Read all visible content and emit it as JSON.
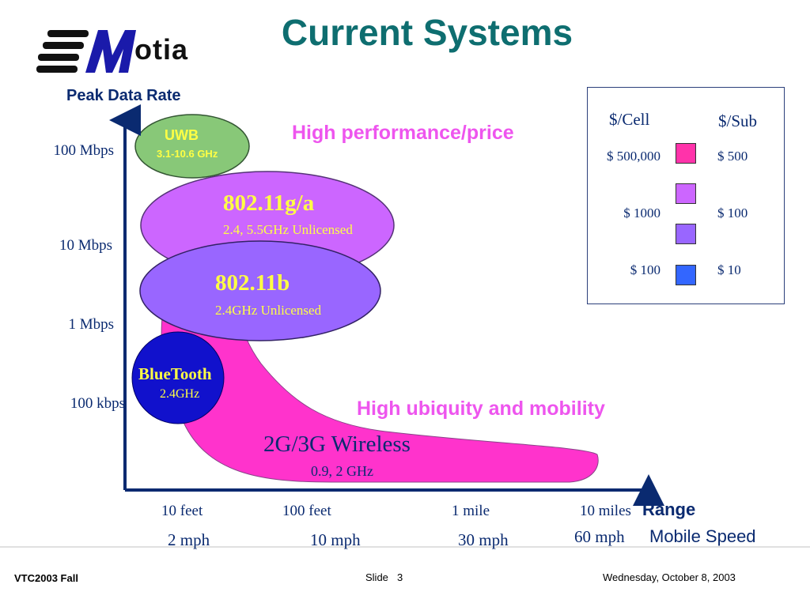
{
  "slide": {
    "title": "Current Systems",
    "logo_text": "otia",
    "y_axis_title": "Peak Data Rate",
    "x_axis_title": "Range",
    "speed_axis_title": "Mobile Speed",
    "y_ticks": [
      "100 Mbps",
      "10 Mbps",
      "1 Mbps",
      "100 kbps"
    ],
    "x_ticks": [
      "10 feet",
      "100 feet",
      "1 mile",
      "10 miles"
    ],
    "speed_ticks": [
      "2 mph",
      "10 mph",
      "30 mph",
      "60 mph"
    ],
    "note_top": "High performance/price",
    "note_bottom": "High ubiquity and mobility"
  },
  "regions": {
    "uwb": {
      "name": "UWB",
      "band": "3.1-10.6 GHz",
      "color": "#88c878"
    },
    "wifi_ga": {
      "name": "802.11g/a",
      "band": "2.4, 5.5GHz Unlicensed",
      "color": "#cc66ff"
    },
    "wifi_b": {
      "name": "802.11b",
      "band": "2.4GHz Unlicensed",
      "color": "#9966ff"
    },
    "bluetooth": {
      "name": "BlueTooth",
      "band": "2.4GHz",
      "color": "#1111cc"
    },
    "cellular": {
      "name": "2G/3G Wireless",
      "band": "0.9, 2 GHz",
      "color": "#ff33cc"
    }
  },
  "legend": {
    "col1_header": "$/Cell",
    "col2_header": "$/Sub",
    "rows": [
      {
        "cell": "$ 500,000",
        "sub": "$ 500",
        "color": "#ff33aa"
      },
      {
        "cell": "",
        "sub": "",
        "color": "#cc66ff"
      },
      {
        "cell": "$ 1000",
        "sub": "$ 100",
        "color": "#9966ff"
      },
      {
        "cell": "$ 100",
        "sub": "$ 10",
        "color": "#3366ff"
      }
    ]
  },
  "footer": {
    "left": "VTC2003 Fall",
    "center_label": "Slide",
    "slide_number": "3",
    "right": "Wednesday, October 8, 2003"
  }
}
